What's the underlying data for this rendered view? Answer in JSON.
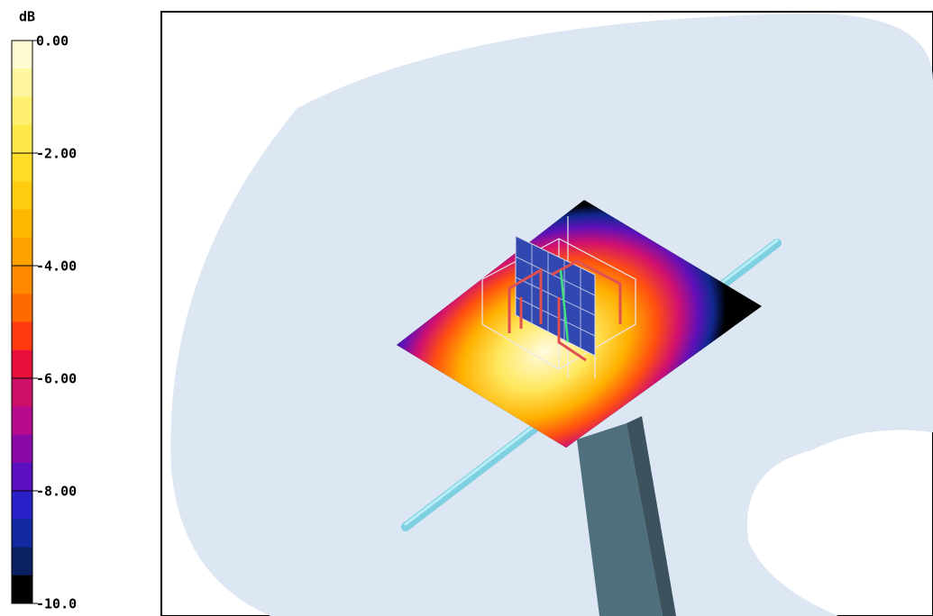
{
  "colorbar": {
    "label": "dB",
    "range": [
      0,
      -10
    ],
    "ticks": [
      {
        "value": 0,
        "label": "0.00"
      },
      {
        "value": -2,
        "label": "-2.00"
      },
      {
        "value": -4,
        "label": "-4.00"
      },
      {
        "value": -6,
        "label": "-6.00"
      },
      {
        "value": -8,
        "label": "-8.00"
      },
      {
        "value": -10,
        "label": "-10.0"
      }
    ],
    "colors": [
      "#fffbd2",
      "#fff6a0",
      "#fff070",
      "#ffe84a",
      "#ffdc28",
      "#ffcc10",
      "#ffb800",
      "#ffa200",
      "#ff8a00",
      "#ff6a00",
      "#ff3a10",
      "#e8103a",
      "#cc1066",
      "#b80a8c",
      "#8a0aa8",
      "#5a10c0",
      "#2a20c8",
      "#1028a0",
      "#0a2060",
      "#000000"
    ]
  }
}
